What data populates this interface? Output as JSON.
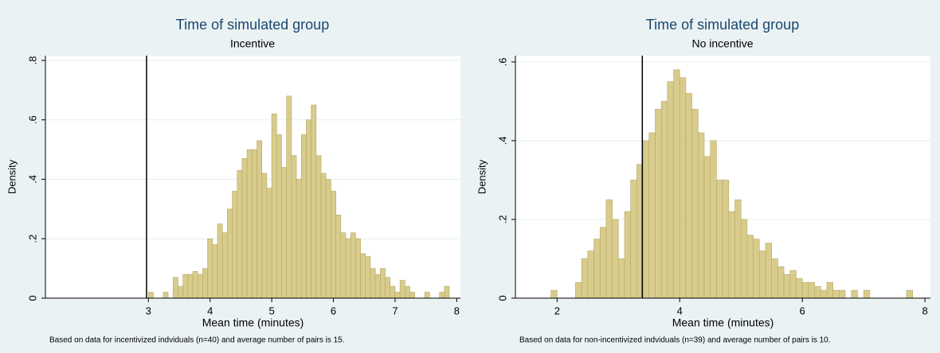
{
  "chart_data": [
    {
      "type": "histogram",
      "title": "Time of simulated group",
      "subtitle": "Incentive",
      "xlabel": "Mean time (minutes)",
      "ylabel": "Density",
      "note": "Based on data for incentivized indviduals (n=40) and average number of pairs is 15.",
      "bins": [
        3,
        3.08,
        3.16,
        3.24,
        3.32,
        3.4,
        3.48,
        3.56,
        3.64,
        3.72,
        3.8,
        3.88,
        3.96,
        4.04,
        4.12,
        4.2,
        4.28,
        4.36,
        4.44,
        4.52,
        4.6,
        4.68,
        4.76,
        4.84,
        4.92,
        5,
        5.08,
        5.16,
        5.24,
        5.32,
        5.4,
        5.48,
        5.56,
        5.64,
        5.72,
        5.8,
        5.88,
        5.96,
        6.04,
        6.12,
        6.2,
        6.28,
        6.36,
        6.44,
        6.52,
        6.6,
        6.68,
        6.76,
        6.84,
        6.92,
        7,
        7.08,
        7.16,
        7.24,
        7.32,
        7.4,
        7.48,
        7.56,
        7.64,
        7.72,
        7.8,
        7.88
      ],
      "values": [
        0.02,
        0,
        0,
        0.02,
        0,
        0.07,
        0.04,
        0.08,
        0.08,
        0.09,
        0.08,
        0.1,
        0.2,
        0.18,
        0.25,
        0.22,
        0.3,
        0.36,
        0.43,
        0.47,
        0.5,
        0.5,
        0.53,
        0.42,
        0.37,
        0.62,
        0.55,
        0.44,
        0.68,
        0.48,
        0.4,
        0.55,
        0.6,
        0.65,
        0.48,
        0.42,
        0.4,
        0.36,
        0.28,
        0.22,
        0.2,
        0.22,
        0.2,
        0.15,
        0.14,
        0.1,
        0.08,
        0.1,
        0.07,
        0.04,
        0.02,
        0.06,
        0.04,
        0.02,
        0,
        0,
        0.02,
        0,
        0,
        0.02,
        0.04
      ],
      "xlim": [
        1.33,
        8.06
      ],
      "ylim": [
        0,
        0.816
      ],
      "xticks": [
        3,
        4,
        5,
        6,
        7,
        8
      ],
      "yticks": [
        0,
        {
          "value": 0.2,
          "label": ".2"
        },
        {
          "value": 0.4,
          "label": ".4"
        },
        {
          "value": 0.6,
          "label": ".6"
        },
        {
          "value": 0.8,
          "label": ".8"
        }
      ],
      "vline": 2.97,
      "color": "#d8cc8c",
      "grid": true
    },
    {
      "type": "histogram",
      "title": "Time of simulated group",
      "subtitle": "No incentive",
      "xlabel": "Mean time (minutes)",
      "ylabel": "Density",
      "note": "Based on data for non-incentivized indviduals (n=39) and average number of pairs is 10.",
      "bins": [
        1.9,
        2,
        2.1,
        2.2,
        2.3,
        2.4,
        2.5,
        2.6,
        2.7,
        2.8,
        2.9,
        3,
        3.1,
        3.2,
        3.3,
        3.4,
        3.5,
        3.6,
        3.7,
        3.8,
        3.9,
        4,
        4.1,
        4.2,
        4.3,
        4.4,
        4.5,
        4.6,
        4.7,
        4.8,
        4.9,
        5,
        5.1,
        5.2,
        5.3,
        5.4,
        5.5,
        5.6,
        5.7,
        5.8,
        5.9,
        6,
        6.1,
        6.2,
        6.3,
        6.4,
        6.5,
        6.6,
        6.7,
        6.8,
        6.9,
        7,
        7.1,
        7.2,
        7.3,
        7.4,
        7.5,
        7.6,
        7.7,
        7.8
      ],
      "values": [
        0.02,
        0,
        0,
        0,
        0.04,
        0.1,
        0.12,
        0.15,
        0.18,
        0.25,
        0.2,
        0.1,
        0.22,
        0.3,
        0.34,
        0.4,
        0.42,
        0.48,
        0.5,
        0.55,
        0.58,
        0.56,
        0.52,
        0.48,
        0.42,
        0.36,
        0.4,
        0.3,
        0.3,
        0.22,
        0.25,
        0.2,
        0.16,
        0.15,
        0.12,
        0.14,
        0.1,
        0.08,
        0.06,
        0.07,
        0.05,
        0.04,
        0.04,
        0.03,
        0.02,
        0.04,
        0.02,
        0.02,
        0,
        0.02,
        0,
        0.02,
        0,
        0,
        0,
        0,
        0,
        0,
        0.02
      ],
      "xlim": [
        1.32,
        8.09
      ],
      "ylim": [
        0,
        0.616
      ],
      "xticks": [
        2,
        4,
        6,
        8
      ],
      "yticks": [
        0,
        {
          "value": 0.2,
          "label": ".2"
        },
        {
          "value": 0.4,
          "label": ".4"
        },
        {
          "value": 0.6,
          "label": ".6"
        }
      ],
      "vline": 3.39,
      "color": "#d8cc8c",
      "grid": true
    }
  ]
}
